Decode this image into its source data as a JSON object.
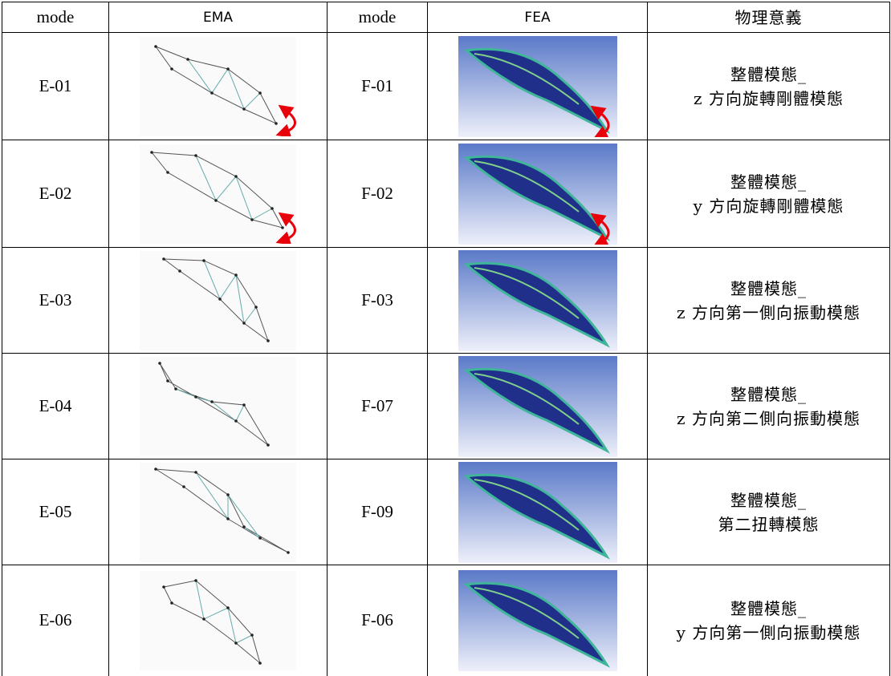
{
  "table": {
    "header": [
      "mode",
      "EMA",
      "mode",
      "FEA",
      "物理意義"
    ],
    "rows": [
      {
        "ema_mode": "E-01",
        "fea_mode": "F-01",
        "description": [
          "整體模態_",
          "z 方向旋轉剛體模態"
        ]
      },
      {
        "ema_mode": "E-02",
        "fea_mode": "F-02",
        "description": [
          "整體模態_",
          "y 方向旋轉剛體模態"
        ]
      },
      {
        "ema_mode": "E-03",
        "fea_mode": "F-03",
        "description": [
          "整體模態_",
          "z 方向第一側向振動模態"
        ]
      },
      {
        "ema_mode": "E-04",
        "fea_mode": "F-07",
        "description": [
          "整體模態_",
          "z 方向第二側向振動模態"
        ]
      },
      {
        "ema_mode": "E-05",
        "fea_mode": "F-09",
        "description": [
          "整體模態_",
          "第二扭轉模態"
        ]
      },
      {
        "ema_mode": "E-06",
        "fea_mode": "F-06",
        "description": [
          "整體模態_",
          "y 方向第一側向振動模態"
        ]
      }
    ]
  }
}
